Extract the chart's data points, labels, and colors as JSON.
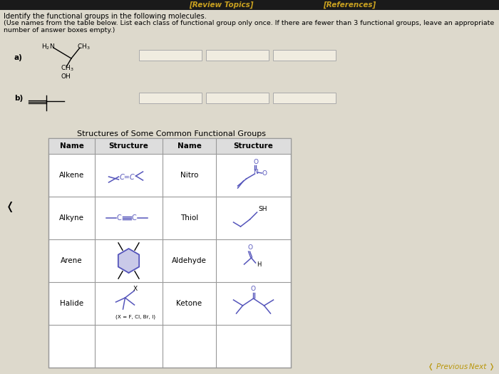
{
  "bg_color": "#ddd9cc",
  "header_bar_color": "#1a1a1a",
  "header_text_left": "[Review Topics]",
  "header_text_right": "[References]",
  "header_text_color": "#c8a020",
  "title_line1": "Identify the functional groups in the following molecules.",
  "title_line2": "(Use names from the table below. List each class of functional group only once. If there are fewer than 3 functional groups, leave an appropriate",
  "title_line3": "number of answer boxes empty.)",
  "label_a": "a)",
  "label_b": "b)",
  "table_title": "Structures of Some Common Functional Groups",
  "col_headers": [
    "Name",
    "Structure",
    "Name",
    "Structure"
  ],
  "answer_box_color": "#f0ece0",
  "answer_box_border": "#aaaaaa",
  "nav_prev": "Previous",
  "nav_next": "Next",
  "nav_color": "#b8960a",
  "table_bg": "#ffffff",
  "table_border": "#999999",
  "struct_color": "#5555bb",
  "black": "#000000"
}
